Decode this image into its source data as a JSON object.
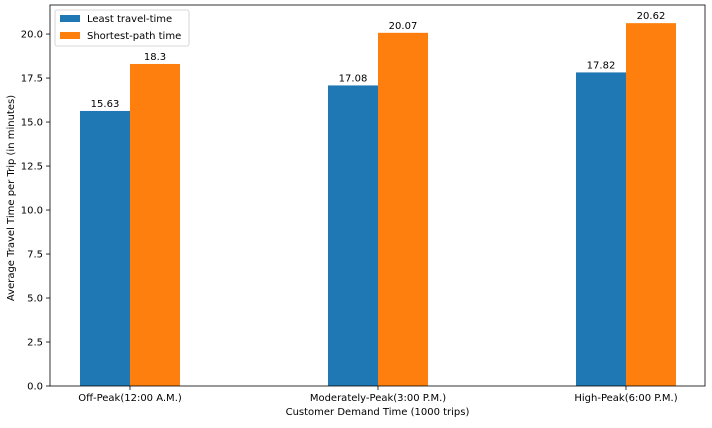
{
  "chart_data": {
    "type": "bar",
    "title": "",
    "xlabel": "Customer Demand Time (1000 trips)",
    "ylabel": "Average Travel Time per Trip (in minutes)",
    "categories": [
      "Off-Peak(12:00 A.M.)",
      "Moderately-Peak(3:00 P.M.)",
      "High-Peak(6:00 P.M.)"
    ],
    "series": [
      {
        "name": "Least travel-time",
        "color": "#1f77b4",
        "values": [
          15.63,
          17.08,
          17.82
        ],
        "labels": [
          "15.63",
          "17.08",
          "17.82"
        ]
      },
      {
        "name": "Shortest-path time",
        "color": "#ff7f0e",
        "values": [
          18.3,
          20.07,
          20.62
        ],
        "labels": [
          "18.3",
          "20.07",
          "20.62"
        ]
      }
    ],
    "ylim": [
      0,
      21.651
    ],
    "yticks": [
      "0.0",
      "2.5",
      "5.0",
      "7.5",
      "10.0",
      "12.5",
      "15.0",
      "17.5",
      "20.0"
    ],
    "grid": false,
    "legend": "top-left"
  }
}
